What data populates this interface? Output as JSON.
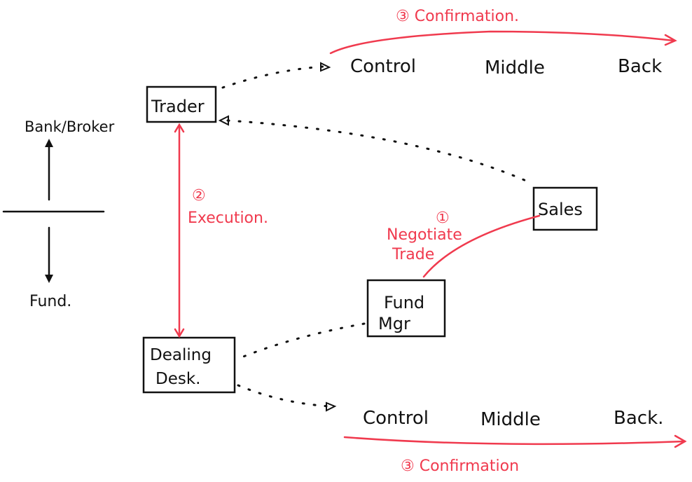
{
  "colors": {
    "ink": "#111111",
    "accent": "#f03a4e"
  },
  "left": {
    "top_label": "Bank/Broker",
    "bottom_label": "Fund."
  },
  "nodes": {
    "trader": "Trader",
    "sales": "Sales",
    "fund_mgr_line1": "Fund",
    "fund_mgr_line2": "Mgr",
    "dealing_line1": "Dealing",
    "dealing_line2": "Desk."
  },
  "top_row": {
    "control": "Control",
    "middle": "Middle",
    "back": "Back",
    "confirmation": "③ Confirmation."
  },
  "bottom_row": {
    "control": "Control",
    "middle": "Middle",
    "back": "Back.",
    "confirmation": "③ Confirmation"
  },
  "execution": {
    "number": "②",
    "label": "Execution."
  },
  "negotiate": {
    "number": "①",
    "line1": "Negotiate",
    "line2": "Trade"
  }
}
